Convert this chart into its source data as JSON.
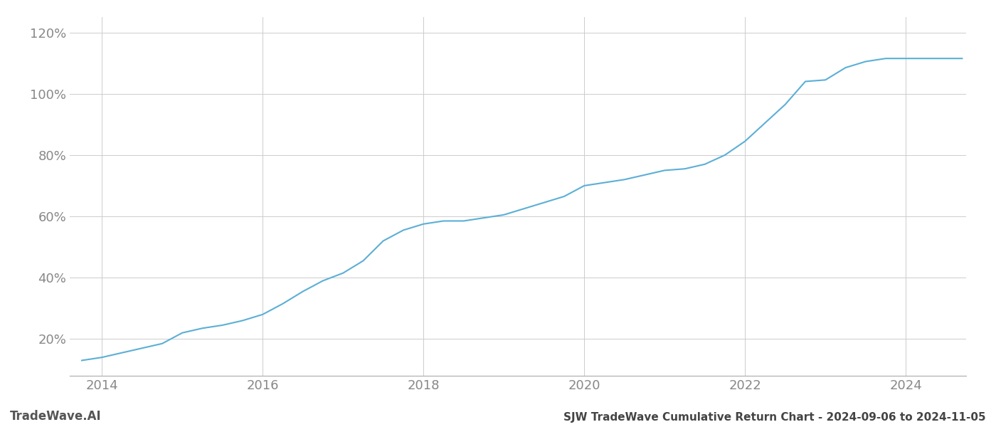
{
  "title": "SJW TradeWave Cumulative Return Chart - 2024-09-06 to 2024-11-05",
  "watermark": "TradeWave.AI",
  "line_color": "#5bafd6",
  "background_color": "#ffffff",
  "grid_color": "#cccccc",
  "x_ticks": [
    2014,
    2016,
    2018,
    2020,
    2022,
    2024
  ],
  "y_ticks": [
    0.2,
    0.4,
    0.6,
    0.8,
    1.0,
    1.2
  ],
  "xlim": [
    2013.6,
    2024.75
  ],
  "ylim": [
    0.08,
    1.25
  ],
  "years": [
    2013.75,
    2014.0,
    2014.25,
    2014.5,
    2014.75,
    2015.0,
    2015.25,
    2015.5,
    2015.75,
    2016.0,
    2016.25,
    2016.5,
    2016.75,
    2017.0,
    2017.25,
    2017.5,
    2017.75,
    2018.0,
    2018.25,
    2018.5,
    2018.75,
    2019.0,
    2019.25,
    2019.5,
    2019.75,
    2020.0,
    2020.25,
    2020.5,
    2020.75,
    2021.0,
    2021.25,
    2021.5,
    2021.75,
    2022.0,
    2022.25,
    2022.5,
    2022.75,
    2023.0,
    2023.25,
    2023.5,
    2023.75,
    2024.0,
    2024.25,
    2024.5,
    2024.7
  ],
  "values": [
    0.13,
    0.14,
    0.155,
    0.17,
    0.185,
    0.22,
    0.235,
    0.245,
    0.26,
    0.28,
    0.315,
    0.355,
    0.39,
    0.415,
    0.455,
    0.52,
    0.555,
    0.575,
    0.585,
    0.585,
    0.595,
    0.605,
    0.625,
    0.645,
    0.665,
    0.7,
    0.71,
    0.72,
    0.735,
    0.75,
    0.755,
    0.77,
    0.8,
    0.845,
    0.905,
    0.965,
    1.04,
    1.045,
    1.085,
    1.105,
    1.115,
    1.115,
    1.115,
    1.115,
    1.115
  ],
  "title_fontsize": 11,
  "watermark_fontsize": 12,
  "tick_fontsize": 13,
  "tick_color": "#888888",
  "spine_color": "#aaaaaa",
  "footer_title_color": "#444444",
  "footer_watermark_color": "#555555"
}
